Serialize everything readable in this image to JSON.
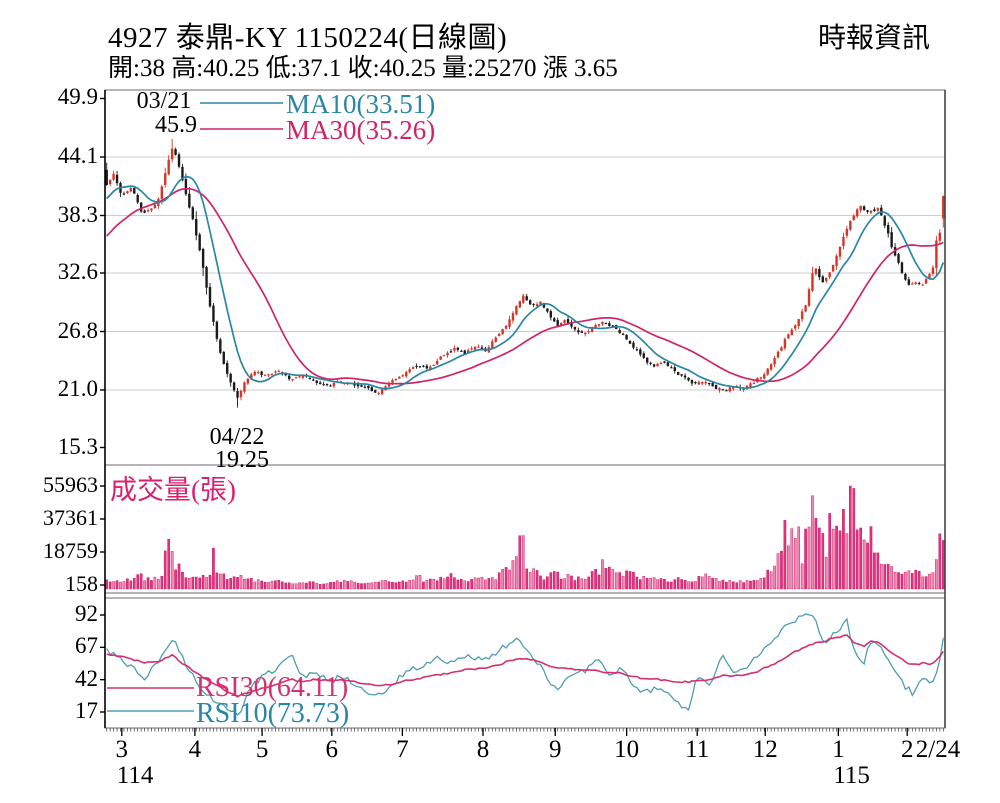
{
  "header": {
    "title": "4927 泰鼎-KY 1150224(日線圖)",
    "source": "時報資訊",
    "quote_line": "開:38 高:40.25 低:37.1 收:40.25 量:25270 漲 3.65",
    "quote": {
      "open": 38,
      "high": 40.25,
      "low": 37.1,
      "close": 40.25,
      "volume": 25270,
      "change": 3.65
    }
  },
  "colors": {
    "up": "#d63427",
    "down": "#1a1a1a",
    "ma10": "#2a86a5",
    "ma30": "#cf2468",
    "vol_dark": "#e2337d",
    "vol_light": "#f287b2",
    "vol_stroke": "#c2085a",
    "vol_label": "#dc1e6e",
    "rsi10": "#4d9db4",
    "rsi30": "#d6306e",
    "grid": "#cccccc",
    "border": "#6b6b6b",
    "axis": "#000000",
    "tick": "#333333"
  },
  "x_axis": {
    "months": [
      {
        "label": "3",
        "t": 0.02
      },
      {
        "label": "4",
        "t": 0.107
      },
      {
        "label": "5",
        "t": 0.187
      },
      {
        "label": "6",
        "t": 0.27
      },
      {
        "label": "7",
        "t": 0.354
      },
      {
        "label": "8",
        "t": 0.45
      },
      {
        "label": "9",
        "t": 0.536
      },
      {
        "label": "10",
        "t": 0.621
      },
      {
        "label": "11",
        "t": 0.705
      },
      {
        "label": "12",
        "t": 0.786
      },
      {
        "label": "1",
        "t": 0.873
      },
      {
        "label": "2",
        "t": 0.955
      }
    ],
    "end_label": {
      "label": "2/24",
      "t": 0.988
    },
    "years": [
      {
        "label": "114",
        "t": 0.02
      },
      {
        "label": "115",
        "t": 0.873
      }
    ]
  },
  "chart_data": [
    {
      "type": "candlestick",
      "name": "daily-price",
      "y_ticks": [
        "49.9",
        "44.1",
        "38.3",
        "32.6",
        "26.8",
        "21.0",
        "15.3"
      ],
      "grid_values": [
        44.1,
        38.3,
        32.6,
        26.8,
        21.0
      ],
      "legend": [
        {
          "label": "MA10(33.51)",
          "value": 33.51
        },
        {
          "label": "MA30(35.26)",
          "value": 35.26
        }
      ],
      "high_annotation": {
        "date": "03/21",
        "value": "45.9",
        "t": 0.079,
        "price": 45.9
      },
      "low_annotation": {
        "date": "04/22",
        "value": "19.25",
        "t": 0.157,
        "price": 19.25
      },
      "last_candle": {
        "open": 38,
        "high": 40.25,
        "low": 37.1,
        "close": 40.25,
        "prev_close": 36.6
      },
      "ma_hints": {
        "ma10_start": 40.3,
        "ma30_start": 35.9
      },
      "close_anchors": [
        [
          0.0,
          41.3
        ],
        [
          0.008,
          42.5
        ],
        [
          0.018,
          40.3
        ],
        [
          0.03,
          41.2
        ],
        [
          0.042,
          38.5
        ],
        [
          0.052,
          38.8
        ],
        [
          0.062,
          40.0
        ],
        [
          0.07,
          42.5
        ],
        [
          0.079,
          45.2
        ],
        [
          0.088,
          42.8
        ],
        [
          0.096,
          40.0
        ],
        [
          0.104,
          37.5
        ],
        [
          0.112,
          34.5
        ],
        [
          0.12,
          30.8
        ],
        [
          0.128,
          27.5
        ],
        [
          0.137,
          24.2
        ],
        [
          0.146,
          22.2
        ],
        [
          0.157,
          20.1
        ],
        [
          0.166,
          22.0
        ],
        [
          0.176,
          22.8
        ],
        [
          0.19,
          22.4
        ],
        [
          0.205,
          22.9
        ],
        [
          0.22,
          22.1
        ],
        [
          0.235,
          22.4
        ],
        [
          0.25,
          21.8
        ],
        [
          0.265,
          21.4
        ],
        [
          0.28,
          21.9
        ],
        [
          0.295,
          21.6
        ],
        [
          0.31,
          21.2
        ],
        [
          0.325,
          20.7
        ],
        [
          0.34,
          21.8
        ],
        [
          0.355,
          22.6
        ],
        [
          0.37,
          23.4
        ],
        [
          0.385,
          23.1
        ],
        [
          0.4,
          24.3
        ],
        [
          0.415,
          25.1
        ],
        [
          0.428,
          24.6
        ],
        [
          0.44,
          25.4
        ],
        [
          0.452,
          24.8
        ],
        [
          0.465,
          26.2
        ],
        [
          0.478,
          27.4
        ],
        [
          0.49,
          29.3
        ],
        [
          0.498,
          30.4
        ],
        [
          0.508,
          29.2
        ],
        [
          0.518,
          29.8
        ],
        [
          0.528,
          28.6
        ],
        [
          0.538,
          27.3
        ],
        [
          0.548,
          27.9
        ],
        [
          0.558,
          27.1
        ],
        [
          0.57,
          26.5
        ],
        [
          0.582,
          27.3
        ],
        [
          0.594,
          27.8
        ],
        [
          0.606,
          27.2
        ],
        [
          0.618,
          26.4
        ],
        [
          0.63,
          25.2
        ],
        [
          0.642,
          24.1
        ],
        [
          0.654,
          23.3
        ],
        [
          0.666,
          23.8
        ],
        [
          0.678,
          22.9
        ],
        [
          0.69,
          22.2
        ],
        [
          0.702,
          21.6
        ],
        [
          0.714,
          21.9
        ],
        [
          0.726,
          21.3
        ],
        [
          0.738,
          20.9
        ],
        [
          0.75,
          21.4
        ],
        [
          0.762,
          21.1
        ],
        [
          0.774,
          21.8
        ],
        [
          0.786,
          22.6
        ],
        [
          0.796,
          23.8
        ],
        [
          0.806,
          25.2
        ],
        [
          0.816,
          26.8
        ],
        [
          0.826,
          27.8
        ],
        [
          0.836,
          29.5
        ],
        [
          0.846,
          33.5
        ],
        [
          0.855,
          31.5
        ],
        [
          0.863,
          32.5
        ],
        [
          0.871,
          34.0
        ],
        [
          0.88,
          36.0
        ],
        [
          0.89,
          38.0
        ],
        [
          0.9,
          39.3
        ],
        [
          0.91,
          38.6
        ],
        [
          0.922,
          39.0
        ],
        [
          0.932,
          37.0
        ],
        [
          0.94,
          34.8
        ],
        [
          0.95,
          32.8
        ],
        [
          0.958,
          31.4
        ],
        [
          0.966,
          31.8
        ],
        [
          0.974,
          31.3
        ],
        [
          0.982,
          32.4
        ],
        [
          0.988,
          33.2
        ],
        [
          0.993,
          36.6
        ],
        [
          1.0,
          40.25
        ]
      ]
    },
    {
      "type": "bar",
      "name": "volume",
      "label": "成交量(張)",
      "y_ticks": [
        "55963",
        "37361",
        "18759",
        "158"
      ],
      "max_volume": 55963,
      "last_volume": 25270,
      "spikes": [
        {
          "t": 0.074,
          "v": 26000
        },
        {
          "t": 0.127,
          "v": 21000
        },
        {
          "t": 0.497,
          "v": 28000
        },
        {
          "t": 0.887,
          "v": 55963
        },
        {
          "t": 1.0,
          "v": 25270
        }
      ],
      "anchors": [
        [
          0.0,
          2500
        ],
        [
          0.02,
          1800
        ],
        [
          0.04,
          5200
        ],
        [
          0.048,
          3000
        ],
        [
          0.06,
          4500
        ],
        [
          0.068,
          9000
        ],
        [
          0.074,
          26000
        ],
        [
          0.079,
          19000
        ],
        [
          0.084,
          12000
        ],
        [
          0.09,
          9000
        ],
        [
          0.1,
          5000
        ],
        [
          0.11,
          4200
        ],
        [
          0.122,
          3800
        ],
        [
          0.127,
          21000
        ],
        [
          0.132,
          4000
        ],
        [
          0.14,
          5500
        ],
        [
          0.15,
          4500
        ],
        [
          0.157,
          6500
        ],
        [
          0.165,
          5000
        ],
        [
          0.175,
          3000
        ],
        [
          0.19,
          2000
        ],
        [
          0.2,
          3500
        ],
        [
          0.21,
          1500
        ],
        [
          0.225,
          1200
        ],
        [
          0.24,
          2000
        ],
        [
          0.255,
          1000
        ],
        [
          0.27,
          1500
        ],
        [
          0.285,
          2500
        ],
        [
          0.3,
          1200
        ],
        [
          0.315,
          1000
        ],
        [
          0.33,
          2200
        ],
        [
          0.345,
          1500
        ],
        [
          0.36,
          2800
        ],
        [
          0.37,
          6000
        ],
        [
          0.378,
          3000
        ],
        [
          0.39,
          2500
        ],
        [
          0.4,
          3500
        ],
        [
          0.412,
          5500
        ],
        [
          0.425,
          3000
        ],
        [
          0.438,
          3500
        ],
        [
          0.45,
          4500
        ],
        [
          0.462,
          3800
        ],
        [
          0.472,
          6500
        ],
        [
          0.482,
          9000
        ],
        [
          0.49,
          12000
        ],
        [
          0.497,
          28000
        ],
        [
          0.503,
          9000
        ],
        [
          0.512,
          7000
        ],
        [
          0.522,
          5000
        ],
        [
          0.532,
          6500
        ],
        [
          0.545,
          5000
        ],
        [
          0.558,
          4200
        ],
        [
          0.57,
          3500
        ],
        [
          0.582,
          6000
        ],
        [
          0.595,
          12000
        ],
        [
          0.605,
          7000
        ],
        [
          0.618,
          6500
        ],
        [
          0.63,
          5500
        ],
        [
          0.645,
          4000
        ],
        [
          0.658,
          3200
        ],
        [
          0.672,
          2500
        ],
        [
          0.685,
          3500
        ],
        [
          0.698,
          2200
        ],
        [
          0.712,
          5500
        ],
        [
          0.725,
          3000
        ],
        [
          0.74,
          2200
        ],
        [
          0.752,
          1800
        ],
        [
          0.765,
          2500
        ],
        [
          0.778,
          3500
        ],
        [
          0.788,
          6000
        ],
        [
          0.798,
          10000
        ],
        [
          0.806,
          16000
        ],
        [
          0.812,
          30000
        ],
        [
          0.818,
          22000
        ],
        [
          0.824,
          31000
        ],
        [
          0.83,
          18000
        ],
        [
          0.836,
          25000
        ],
        [
          0.842,
          33000
        ],
        [
          0.848,
          50000
        ],
        [
          0.854,
          28000
        ],
        [
          0.86,
          20000
        ],
        [
          0.866,
          38000
        ],
        [
          0.872,
          26000
        ],
        [
          0.88,
          30000
        ],
        [
          0.887,
          55963
        ],
        [
          0.893,
          48000
        ],
        [
          0.9,
          36000
        ],
        [
          0.908,
          22000
        ],
        [
          0.915,
          28000
        ],
        [
          0.922,
          16000
        ],
        [
          0.93,
          12000
        ],
        [
          0.938,
          14000
        ],
        [
          0.946,
          9000
        ],
        [
          0.954,
          7500
        ],
        [
          0.962,
          6000
        ],
        [
          0.97,
          8500
        ],
        [
          0.978,
          5500
        ],
        [
          0.985,
          4500
        ],
        [
          0.991,
          9000
        ],
        [
          0.997,
          25270
        ]
      ]
    },
    {
      "type": "line",
      "name": "rsi",
      "y_ticks": [
        "92",
        "67",
        "42",
        "17"
      ],
      "legend": [
        {
          "label": "RSI30(64.11)",
          "value": 64.11
        },
        {
          "label": "RSI10(73.73)",
          "value": 73.73
        }
      ],
      "anchors": [
        [
          0.0,
          66,
          62
        ],
        [
          0.015,
          58,
          60
        ],
        [
          0.03,
          52,
          58
        ],
        [
          0.045,
          44,
          55
        ],
        [
          0.06,
          53,
          56
        ],
        [
          0.079,
          74,
          61
        ],
        [
          0.09,
          60,
          55
        ],
        [
          0.105,
          42,
          48
        ],
        [
          0.12,
          30,
          42
        ],
        [
          0.135,
          22,
          36
        ],
        [
          0.157,
          14,
          29
        ],
        [
          0.172,
          36,
          33
        ],
        [
          0.19,
          46,
          36
        ],
        [
          0.205,
          50,
          39
        ],
        [
          0.22,
          61,
          42
        ],
        [
          0.235,
          44,
          41
        ],
        [
          0.25,
          48,
          42
        ],
        [
          0.265,
          40,
          41
        ],
        [
          0.28,
          45,
          42
        ],
        [
          0.3,
          36,
          40
        ],
        [
          0.32,
          28,
          38
        ],
        [
          0.335,
          33,
          38
        ],
        [
          0.355,
          47,
          41
        ],
        [
          0.375,
          52,
          43
        ],
        [
          0.395,
          58,
          46
        ],
        [
          0.41,
          54,
          47
        ],
        [
          0.43,
          62,
          50
        ],
        [
          0.45,
          57,
          51
        ],
        [
          0.47,
          65,
          54
        ],
        [
          0.49,
          72,
          58
        ],
        [
          0.505,
          64,
          58
        ],
        [
          0.52,
          50,
          55
        ],
        [
          0.538,
          34,
          51
        ],
        [
          0.555,
          45,
          50
        ],
        [
          0.572,
          49,
          49
        ],
        [
          0.586,
          58,
          49
        ],
        [
          0.6,
          46,
          47
        ],
        [
          0.615,
          50,
          47
        ],
        [
          0.63,
          38,
          44
        ],
        [
          0.645,
          32,
          43
        ],
        [
          0.66,
          36,
          42
        ],
        [
          0.675,
          28,
          41
        ],
        [
          0.696,
          17,
          40
        ],
        [
          0.706,
          46,
          42
        ],
        [
          0.72,
          38,
          42
        ],
        [
          0.736,
          60,
          45
        ],
        [
          0.75,
          48,
          45
        ],
        [
          0.765,
          53,
          46
        ],
        [
          0.78,
          62,
          49
        ],
        [
          0.8,
          76,
          55
        ],
        [
          0.815,
          85,
          61
        ],
        [
          0.83,
          90,
          66
        ],
        [
          0.845,
          93,
          70
        ],
        [
          0.858,
          68,
          72
        ],
        [
          0.872,
          80,
          75
        ],
        [
          0.885,
          87,
          76
        ],
        [
          0.895,
          60,
          70
        ],
        [
          0.905,
          56,
          68
        ],
        [
          0.915,
          73,
          72
        ],
        [
          0.925,
          69,
          70
        ],
        [
          0.935,
          58,
          65
        ],
        [
          0.945,
          46,
          60
        ],
        [
          0.955,
          36,
          56
        ],
        [
          0.965,
          31,
          53
        ],
        [
          0.975,
          44,
          55
        ],
        [
          0.985,
          38,
          53
        ],
        [
          0.993,
          50,
          58
        ],
        [
          1.0,
          73.73,
          64.11
        ]
      ]
    }
  ]
}
